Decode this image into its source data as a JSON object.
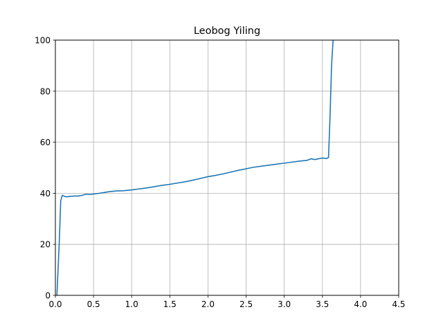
{
  "chart_data": {
    "type": "line",
    "title": "Leobog Yiling",
    "xlabel": "",
    "ylabel": "",
    "xlim": [
      0,
      4.5
    ],
    "ylim": [
      0,
      100
    ],
    "x_ticks": [
      0.0,
      0.5,
      1.0,
      1.5,
      2.0,
      2.5,
      3.0,
      3.5,
      4.0,
      4.5
    ],
    "x_tick_labels": [
      "0.0",
      "0.5",
      "1.0",
      "1.5",
      "2.0",
      "2.5",
      "3.0",
      "3.5",
      "4.0",
      "4.5"
    ],
    "y_ticks": [
      0,
      20,
      40,
      60,
      80,
      100
    ],
    "y_tick_labels": [
      "0",
      "20",
      "40",
      "60",
      "80",
      "100"
    ],
    "grid": true,
    "series": [
      {
        "color": "#1f77b4",
        "x": [
          0.02,
          0.05,
          0.07,
          0.09,
          0.12,
          0.15,
          0.2,
          0.25,
          0.3,
          0.35,
          0.4,
          0.45,
          0.5,
          0.6,
          0.7,
          0.8,
          0.9,
          1.0,
          1.1,
          1.2,
          1.3,
          1.4,
          1.5,
          1.6,
          1.7,
          1.8,
          1.9,
          2.0,
          2.1,
          2.2,
          2.3,
          2.4,
          2.5,
          2.6,
          2.7,
          2.8,
          2.9,
          3.0,
          3.1,
          3.2,
          3.3,
          3.35,
          3.4,
          3.45,
          3.5,
          3.55,
          3.58,
          3.6,
          3.62,
          3.64
        ],
        "y": [
          0,
          20,
          37,
          39.2,
          38.8,
          38.6,
          38.8,
          38.9,
          38.9,
          39.2,
          39.6,
          39.5,
          39.7,
          40.1,
          40.6,
          40.9,
          41.0,
          41.3,
          41.7,
          42.1,
          42.6,
          43.1,
          43.5,
          44.0,
          44.5,
          45.1,
          45.8,
          46.5,
          47.0,
          47.6,
          48.3,
          49.0,
          49.6,
          50.2,
          50.6,
          51.0,
          51.4,
          51.8,
          52.2,
          52.6,
          52.9,
          53.5,
          53.2,
          53.5,
          53.8,
          53.6,
          54.0,
          70,
          90,
          100
        ]
      }
    ]
  }
}
